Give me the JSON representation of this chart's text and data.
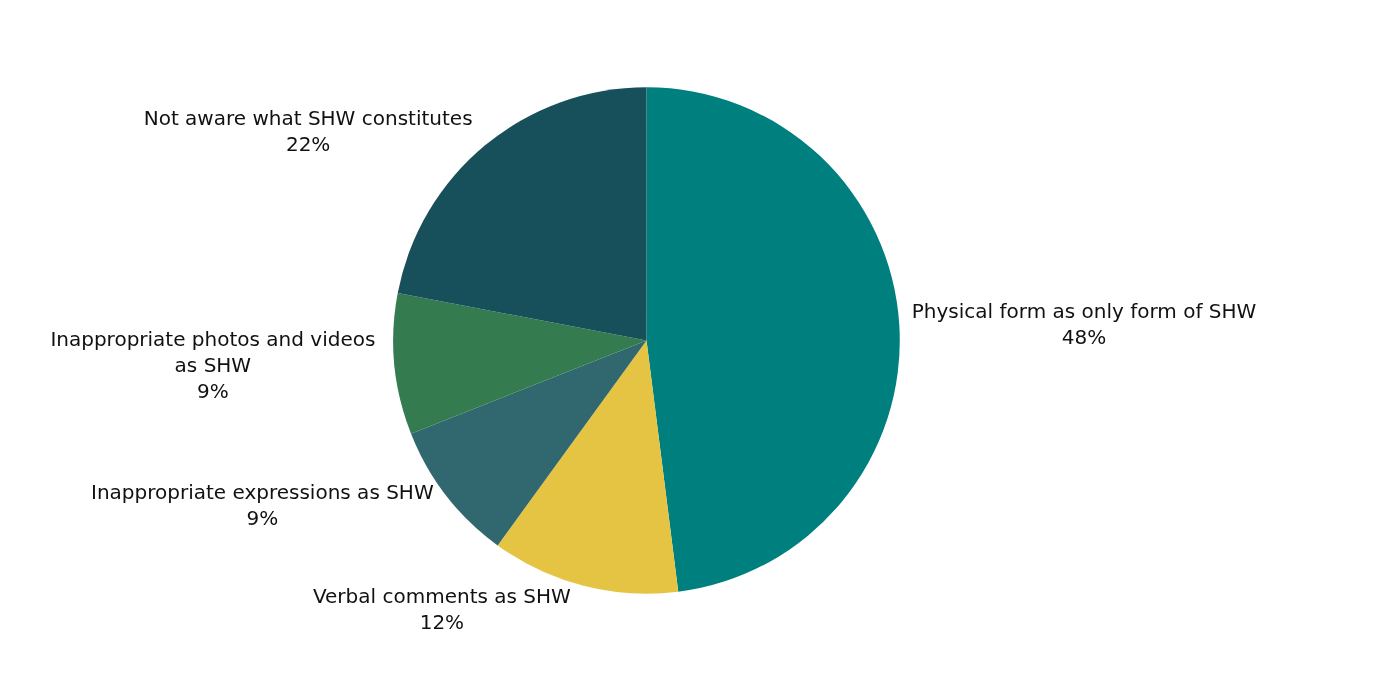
{
  "chart_data": {
    "type": "pie",
    "categories": [
      "Physical form as only form of SHW",
      "Verbal comments as SHW",
      "Inappropriate expressions as SHW",
      "Inappropriate photos and videos as SHW",
      "Not aware what SHW constitutes"
    ],
    "values": [
      48,
      12,
      9,
      9,
      22
    ],
    "value_labels": [
      "48%",
      "12%",
      "9%",
      "9%",
      "22%"
    ],
    "colors": [
      "#007f7f",
      "#e5c444",
      "#31676e",
      "#357b50",
      "#17505a"
    ],
    "legend": false
  }
}
